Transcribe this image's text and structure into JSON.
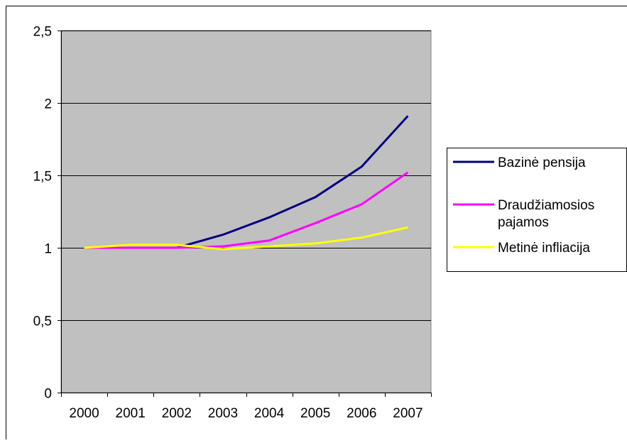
{
  "chart_data": {
    "type": "line",
    "categories": [
      "2000",
      "2001",
      "2002",
      "2003",
      "2004",
      "2005",
      "2006",
      "2007"
    ],
    "series": [
      {
        "name": "Bazinė pensija",
        "color": "#000080",
        "values": [
          1.0,
          1.0,
          1.0,
          1.09,
          1.21,
          1.35,
          1.56,
          1.91
        ]
      },
      {
        "name": "Draudžiamosios pajamos",
        "name_lines": [
          "Draudžiamosios",
          "pajamos"
        ],
        "color": "#ff00ff",
        "values": [
          1.0,
          1.0,
          1.0,
          1.01,
          1.05,
          1.17,
          1.3,
          1.52
        ]
      },
      {
        "name": "Metinė infliacija",
        "color": "#ffff00",
        "values": [
          1.0,
          1.02,
          1.02,
          0.99,
          1.01,
          1.03,
          1.07,
          1.14
        ]
      }
    ],
    "y_ticks": [
      "0",
      "0,5",
      "1",
      "1,5",
      "2",
      "2,5"
    ],
    "ylim": [
      0,
      2.5
    ],
    "grid": true,
    "plot_background": "#c0c0c0",
    "legend_position": "right"
  }
}
